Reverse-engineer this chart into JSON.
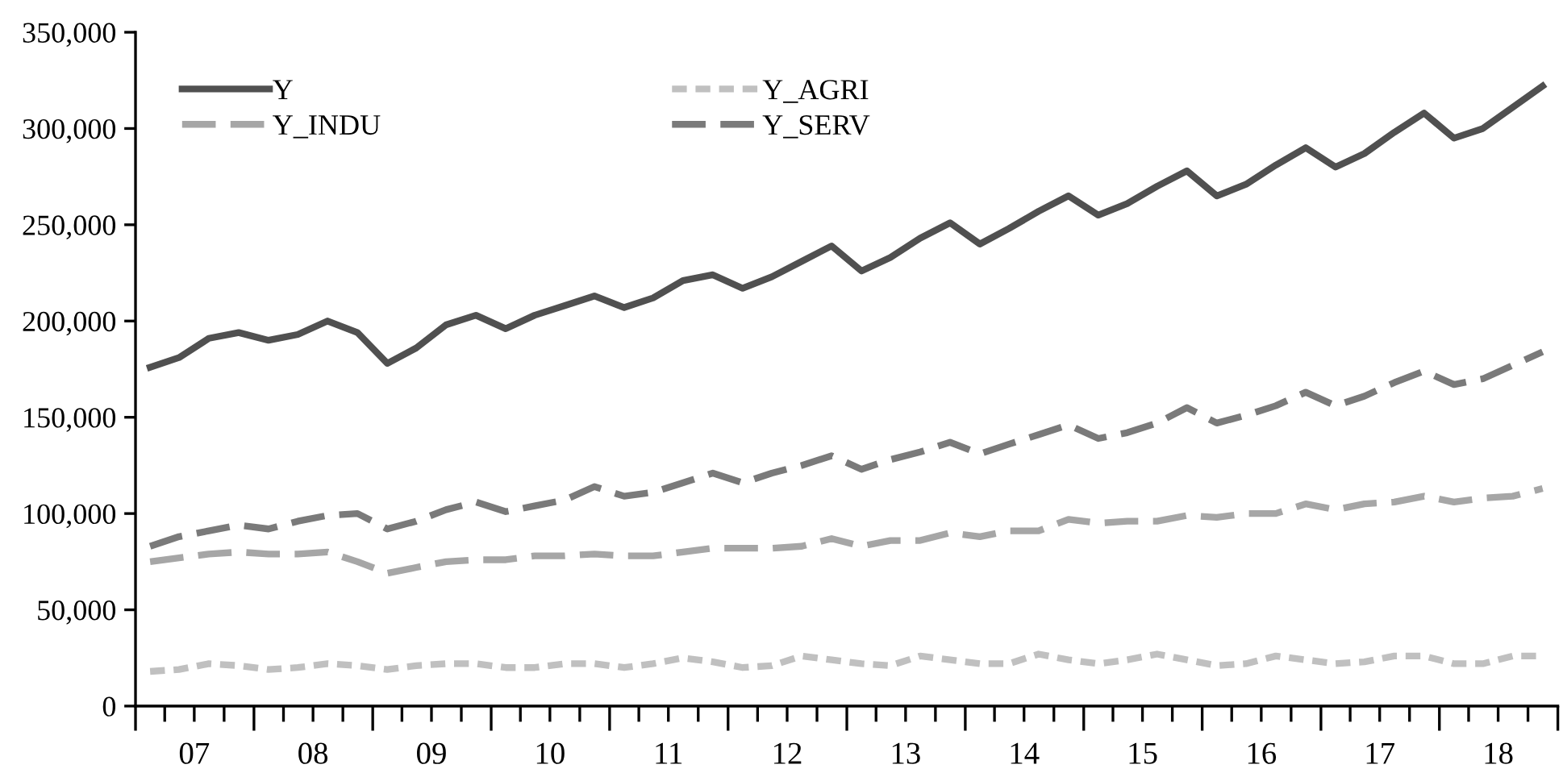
{
  "chart_data": {
    "type": "line",
    "x": [
      "2007-02-15",
      "2007-05-15",
      "2007-08-15",
      "2007-11-15",
      "2008-02-15",
      "2008-05-15",
      "2008-08-15",
      "2008-11-15",
      "2009-02-15",
      "2009-05-15",
      "2009-08-15",
      "2009-11-15",
      "2010-02-15",
      "2010-05-15",
      "2010-08-15",
      "2010-11-15",
      "2011-02-15",
      "2011-05-15",
      "2011-08-15",
      "2011-11-15",
      "2012-02-15",
      "2012-05-15",
      "2012-08-15",
      "2012-11-15",
      "2013-02-15",
      "2013-05-15",
      "2013-08-15",
      "2013-11-15",
      "2014-02-15",
      "2014-05-15",
      "2014-08-15",
      "2014-11-15",
      "2015-02-15",
      "2015-05-15",
      "2015-08-15",
      "2015-11-15",
      "2016-02-15",
      "2016-05-15",
      "2016-08-15",
      "2016-11-15",
      "2017-02-15",
      "2017-05-15",
      "2017-08-15",
      "2017-11-15",
      "2018-02-15",
      "2018-05-15",
      "2018-08-15",
      "2018-11-15"
    ],
    "series": [
      {
        "name": "Y",
        "color": "#505050",
        "line_style": "solid",
        "values": [
          176000,
          181000,
          191000,
          194000,
          190000,
          193000,
          200000,
          194000,
          178000,
          186000,
          198000,
          203000,
          196000,
          203000,
          208000,
          213000,
          207000,
          212000,
          221000,
          224000,
          217000,
          223000,
          231000,
          239000,
          226000,
          233000,
          243000,
          251000,
          240000,
          248000,
          257000,
          265000,
          255000,
          261000,
          270000,
          278000,
          265000,
          271000,
          281000,
          290000,
          280000,
          287000,
          298000,
          308000,
          295000,
          300000,
          311000,
          322000
        ]
      },
      {
        "name": "Y_AGRI",
        "color": "#c0c0c0",
        "line_style": "dotted",
        "values": [
          18000,
          19000,
          22000,
          21000,
          19000,
          20000,
          22000,
          21000,
          19000,
          21000,
          22000,
          22000,
          20000,
          20000,
          22000,
          22000,
          20000,
          22000,
          25000,
          23000,
          20000,
          21000,
          26000,
          24000,
          22000,
          21000,
          26000,
          24000,
          22000,
          22000,
          27000,
          24000,
          22000,
          24000,
          27000,
          24000,
          21000,
          22000,
          26000,
          24000,
          22000,
          23000,
          26000,
          26000,
          22000,
          22000,
          26000,
          26000
        ]
      },
      {
        "name": "Y_INDU",
        "color": "#a6a6a6",
        "line_style": "dashed",
        "values": [
          75000,
          77000,
          79000,
          80000,
          79000,
          79000,
          80000,
          75000,
          69000,
          72000,
          75000,
          76000,
          76000,
          78000,
          78000,
          79000,
          78000,
          78000,
          80000,
          82000,
          82000,
          82000,
          83000,
          87000,
          83000,
          86000,
          86000,
          90000,
          88000,
          91000,
          91000,
          97000,
          95000,
          96000,
          96000,
          99000,
          98000,
          100000,
          100000,
          105000,
          102000,
          105000,
          106000,
          109000,
          106000,
          108000,
          109000,
          113000
        ]
      },
      {
        "name": "Y_SERV",
        "color": "#7a7a7a",
        "line_style": "dashed",
        "values": [
          83000,
          88000,
          91000,
          94000,
          92000,
          96000,
          99000,
          100000,
          92000,
          96000,
          102000,
          106000,
          101000,
          104000,
          107000,
          114000,
          109000,
          111000,
          116000,
          121000,
          116000,
          121000,
          125000,
          130000,
          123000,
          128000,
          132000,
          137000,
          131000,
          136000,
          141000,
          146000,
          139000,
          142000,
          147000,
          155000,
          147000,
          151000,
          156000,
          163000,
          156000,
          161000,
          168000,
          174000,
          167000,
          170000,
          177000,
          184000
        ]
      }
    ],
    "xlim": [
      "2007-01-01",
      "2019-01-01"
    ],
    "xticks": [
      {
        "value": "2007-01-01",
        "label": null
      },
      {
        "value": "2007-04-01",
        "label": null
      },
      {
        "value": "2007-07-01",
        "label": "07"
      },
      {
        "value": "2007-10-01",
        "label": null
      },
      {
        "value": "2008-01-01",
        "label": null
      },
      {
        "value": "2008-04-01",
        "label": null
      },
      {
        "value": "2008-07-01",
        "label": "08"
      },
      {
        "value": "2008-10-01",
        "label": null
      },
      {
        "value": "2009-01-01",
        "label": null
      },
      {
        "value": "2009-04-01",
        "label": null
      },
      {
        "value": "2009-07-01",
        "label": "09"
      },
      {
        "value": "2009-10-01",
        "label": null
      },
      {
        "value": "2010-01-01",
        "label": null
      },
      {
        "value": "2010-04-01",
        "label": null
      },
      {
        "value": "2010-07-01",
        "label": "10"
      },
      {
        "value": "2010-10-01",
        "label": null
      },
      {
        "value": "2011-01-01",
        "label": null
      },
      {
        "value": "2011-04-01",
        "label": null
      },
      {
        "value": "2011-07-01",
        "label": "11"
      },
      {
        "value": "2011-10-01",
        "label": null
      },
      {
        "value": "2012-01-01",
        "label": null
      },
      {
        "value": "2012-04-01",
        "label": null
      },
      {
        "value": "2012-07-01",
        "label": "12"
      },
      {
        "value": "2012-10-01",
        "label": null
      },
      {
        "value": "2013-01-01",
        "label": null
      },
      {
        "value": "2013-04-01",
        "label": null
      },
      {
        "value": "2013-07-01",
        "label": "13"
      },
      {
        "value": "2013-10-01",
        "label": null
      },
      {
        "value": "2014-01-01",
        "label": null
      },
      {
        "value": "2014-04-01",
        "label": null
      },
      {
        "value": "2014-07-01",
        "label": "14"
      },
      {
        "value": "2014-10-01",
        "label": null
      },
      {
        "value": "2015-01-01",
        "label": null
      },
      {
        "value": "2015-04-01",
        "label": null
      },
      {
        "value": "2015-07-01",
        "label": "15"
      },
      {
        "value": "2015-10-01",
        "label": null
      },
      {
        "value": "2016-01-01",
        "label": null
      },
      {
        "value": "2016-04-01",
        "label": null
      },
      {
        "value": "2016-07-01",
        "label": "16"
      },
      {
        "value": "2016-10-01",
        "label": null
      },
      {
        "value": "2017-01-01",
        "label": null
      },
      {
        "value": "2017-04-01",
        "label": null
      },
      {
        "value": "2017-07-01",
        "label": "17"
      },
      {
        "value": "2017-10-01",
        "label": null
      },
      {
        "value": "2018-01-01",
        "label": null
      },
      {
        "value": "2018-04-01",
        "label": null
      },
      {
        "value": "2018-07-01",
        "label": "18"
      },
      {
        "value": "2018-10-01",
        "label": null
      },
      {
        "value": "2019-01-01",
        "label": null
      }
    ],
    "ylim": [
      0,
      350000
    ],
    "yticks": [
      0,
      {
        "value": 50000,
        "label": "50,000"
      },
      {
        "value": 100000,
        "label": "100,000"
      },
      {
        "value": 150000,
        "label": "150,000"
      },
      {
        "value": 200000,
        "label": "200,000"
      },
      {
        "value": 250000,
        "label": "250,000"
      },
      {
        "value": 300000,
        "label": "300,000"
      },
      {
        "value": 350000,
        "label": "350,000"
      }
    ],
    "grid": false,
    "legend": "top left",
    "marker": "none"
  }
}
